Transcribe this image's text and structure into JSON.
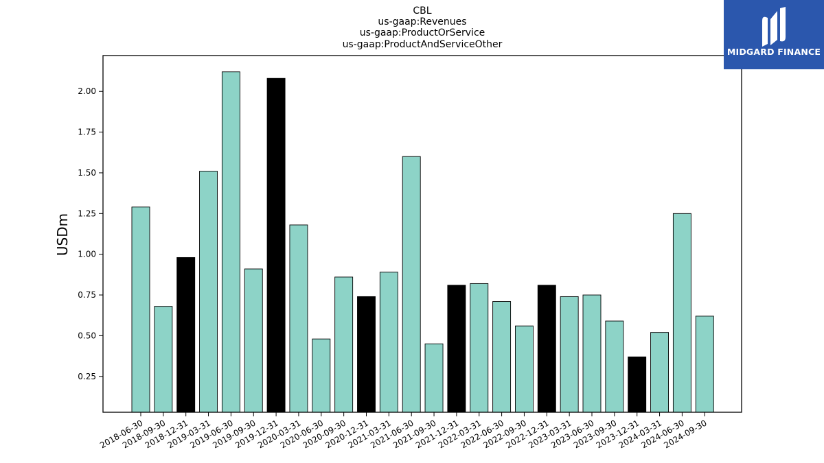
{
  "brand": {
    "logo_text": "MIDGARD FINANCE",
    "color": "#2b57ad"
  },
  "chart_data": {
    "type": "bar",
    "title": [
      "CBL",
      "us-gaap:Revenues",
      "us-gaap:ProductOrService",
      "us-gaap:ProductAndServiceOther"
    ],
    "xlabel": "",
    "ylabel": "USDm",
    "ylim": [
      0.03,
      2.22
    ],
    "yticks": [
      "0.25",
      "0.50",
      "0.75",
      "1.00",
      "1.25",
      "1.50",
      "1.75",
      "2.00"
    ],
    "colors": {
      "regular": "#8dd3c7",
      "q4": "#000000",
      "edge": "#000000"
    },
    "categories": [
      "2018-06-30",
      "2018-09-30",
      "2018-12-31",
      "2019-03-31",
      "2019-06-30",
      "2019-09-30",
      "2019-12-31",
      "2020-03-31",
      "2020-06-30",
      "2020-09-30",
      "2020-12-31",
      "2021-03-31",
      "2021-06-30",
      "2021-09-30",
      "2021-12-31",
      "2022-03-31",
      "2022-06-30",
      "2022-09-30",
      "2022-12-31",
      "2023-03-31",
      "2023-06-30",
      "2023-09-30",
      "2023-12-31",
      "2024-03-31",
      "2024-06-30",
      "2024-09-30"
    ],
    "values": [
      1.29,
      0.68,
      0.98,
      1.51,
      2.12,
      0.91,
      2.08,
      1.18,
      0.48,
      0.86,
      0.74,
      0.89,
      1.6,
      0.45,
      0.81,
      0.82,
      0.71,
      0.56,
      0.81,
      0.74,
      0.75,
      0.59,
      0.37,
      0.52,
      1.25,
      0.62
    ],
    "highlight": [
      false,
      false,
      true,
      false,
      false,
      false,
      true,
      false,
      false,
      false,
      true,
      false,
      false,
      false,
      true,
      false,
      false,
      false,
      true,
      false,
      false,
      false,
      true,
      false,
      false,
      false
    ]
  }
}
